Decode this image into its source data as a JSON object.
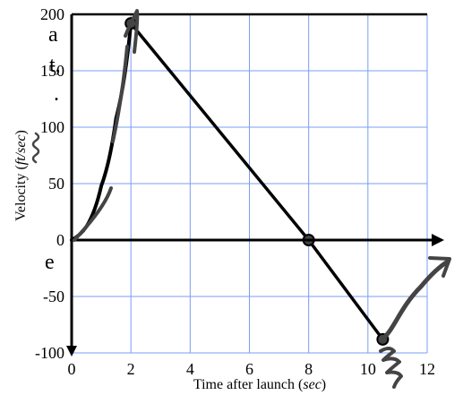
{
  "chart_data": {
    "type": "line",
    "title": "",
    "xlabel_prefix": "Time after launch (",
    "xlabel_unit": "sec",
    "xlabel_suffix": ")",
    "ylabel_prefix": "Velocity (",
    "ylabel_unit": "ft/sec",
    "ylabel_suffix": ")",
    "xlim": [
      0,
      12
    ],
    "ylim": [
      -100,
      200
    ],
    "x_ticks": [
      0,
      2,
      4,
      6,
      8,
      10,
      12
    ],
    "x_tick_labels": [
      "0",
      "2",
      "4",
      "6",
      "8",
      "10",
      "12"
    ],
    "y_ticks": [
      -100,
      -50,
      0,
      50,
      100,
      150,
      200
    ],
    "y_tick_labels": [
      "-100",
      "-50",
      "0",
      "50",
      "100",
      "150",
      "200"
    ],
    "grid": true,
    "legend": "none",
    "series": [
      {
        "style": "curve",
        "x": [
          0,
          0.5,
          1,
          1.5,
          2
        ],
        "y": [
          0,
          12,
          48,
          108,
          192
        ]
      },
      {
        "style": "straight",
        "x": [
          2,
          8,
          10.5
        ],
        "y": [
          192,
          0,
          -88
        ]
      }
    ],
    "highlighted_points": [
      {
        "x": 2,
        "y": 192
      },
      {
        "x": 8,
        "y": 0
      },
      {
        "x": 10.5,
        "y": -88
      }
    ],
    "colors": {
      "grid": "#7b9cf2",
      "axis": "#000000",
      "line": "#000000",
      "ink": "#444444"
    }
  },
  "stray_text": {
    "line1": "a",
    "line2": "t,",
    "line3": ".",
    "line4": "e"
  }
}
